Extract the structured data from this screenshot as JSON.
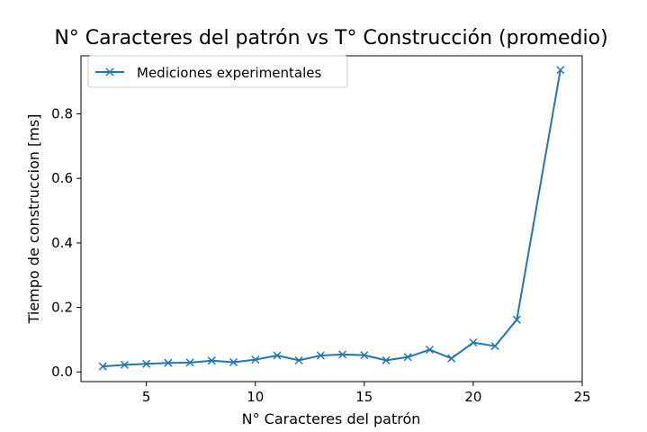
{
  "chart_data": {
    "type": "line",
    "title": "N° Caracteres del patrón vs T° Construcción (promedio)",
    "xlabel": "N° Caracteres del patrón",
    "ylabel": "Tiempo de construccion [ms]",
    "xlim": [
      2.0,
      25.0
    ],
    "ylim": [
      -0.03,
      0.98
    ],
    "xticks": [
      5,
      10,
      15,
      20,
      25
    ],
    "yticks": [
      0.0,
      0.2,
      0.4,
      0.6,
      0.8
    ],
    "ytick_labels": [
      "0.0",
      "0.2",
      "0.4",
      "0.6",
      "0.8"
    ],
    "grid": false,
    "legend": {
      "position": "top-left"
    },
    "series": [
      {
        "name": "Mediciones experimentales",
        "color": "#1f77b4",
        "marker": "x",
        "x": [
          3,
          4,
          5,
          6,
          7,
          8,
          9,
          10,
          11,
          12,
          13,
          14,
          15,
          16,
          17,
          18,
          19,
          20,
          21,
          22,
          24
        ],
        "y": [
          0.017,
          0.022,
          0.025,
          0.028,
          0.029,
          0.035,
          0.03,
          0.038,
          0.051,
          0.036,
          0.051,
          0.054,
          0.052,
          0.036,
          0.046,
          0.069,
          0.042,
          0.091,
          0.08,
          0.162,
          0.936
        ]
      }
    ]
  }
}
